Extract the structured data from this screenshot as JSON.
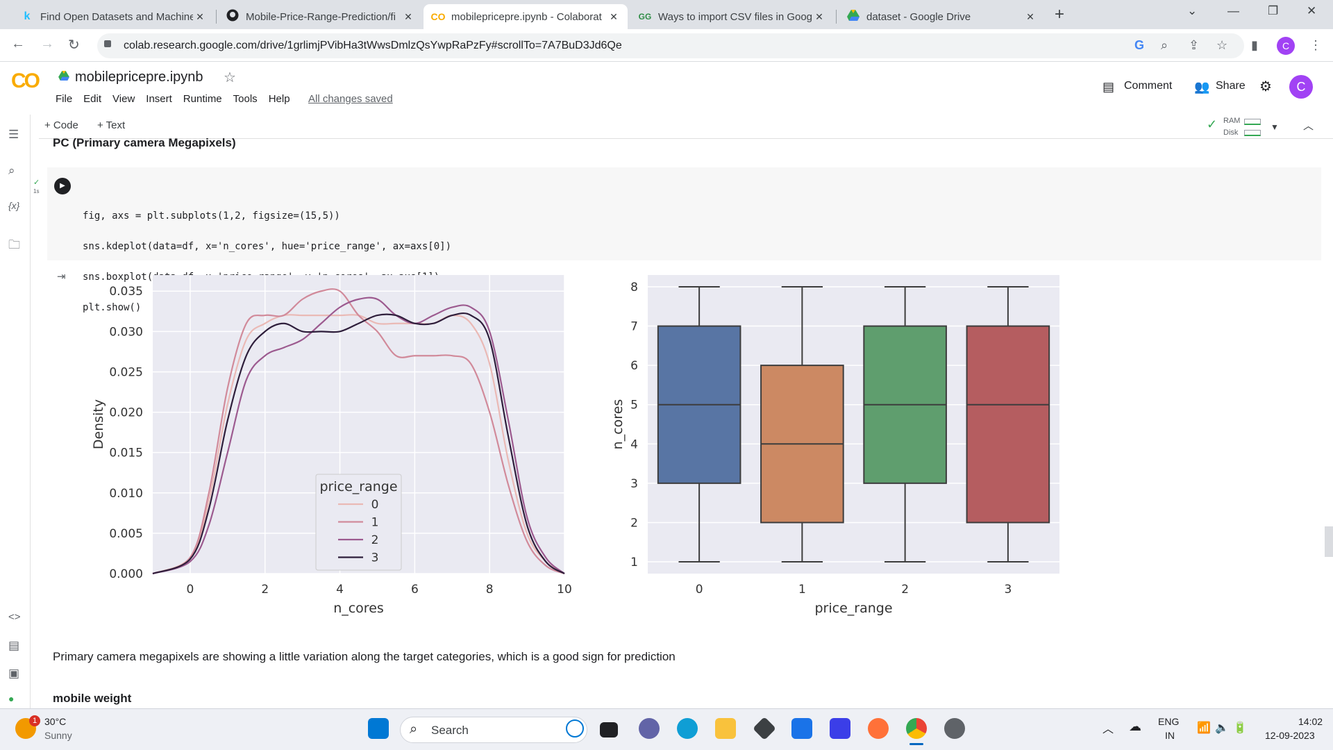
{
  "browser": {
    "tabs": [
      {
        "favicon": "k",
        "title": "Find Open Datasets and Machine",
        "close": "✕"
      },
      {
        "favicon": "github-icon",
        "title": "Mobile-Price-Range-Prediction/fi",
        "close": "✕"
      },
      {
        "favicon": "CO",
        "title": "mobilepricepre.ipynb - Colaborat",
        "close": "✕"
      },
      {
        "favicon": "GG",
        "title": "Ways to import CSV files in Goog",
        "close": "✕"
      },
      {
        "favicon": "drive-icon",
        "title": "dataset - Google Drive",
        "close": "✕"
      }
    ],
    "new_tab": "+",
    "url": "colab.research.google.com/drive/1grlimjPVibHa3tWwsDmlzQsYwpRaPzFy#scrollTo=7A7BuD3Jd6Qe",
    "profile_initial": "C"
  },
  "colab": {
    "logo": "CO",
    "notebook_name": "mobilepricepre.ipynb",
    "menu": [
      "File",
      "Edit",
      "View",
      "Insert",
      "Runtime",
      "Tools",
      "Help"
    ],
    "save_status": "All changes saved",
    "comment_label": "Comment",
    "share_label": "Share",
    "user_initial": "C",
    "add_code": "+ Code",
    "add_text": "+ Text",
    "ram_label": "RAM",
    "disk_label": "Disk"
  },
  "cells": {
    "heading_top": "PC (Primary camera Megapixels)",
    "exec_time": "1s",
    "code_lines": [
      "fig, axs = plt.subplots(1,2, figsize=(15,5))",
      "sns.kdeplot(data=df, x='n_cores', hue='price_range', ax=axs[0])",
      "sns.boxplot(data=df, x='price_range', y='n_cores', ax=axs[1])",
      "plt.show()"
    ],
    "observation": "Primary camera megapixels are showing a little variation along the target categories, which is a good sign for prediction",
    "heading_next": "mobile weight"
  },
  "chart_data": [
    {
      "type": "line",
      "title": "",
      "xlabel": "n_cores",
      "ylabel": "Density",
      "xlim": [
        -1.0,
        10.0
      ],
      "ylim": [
        0.0,
        0.037
      ],
      "xticks": [
        0,
        2,
        4,
        6,
        8,
        10
      ],
      "yticks": [
        "0.000",
        "0.005",
        "0.010",
        "0.015",
        "0.020",
        "0.025",
        "0.030",
        "0.035"
      ],
      "legend": {
        "title": "price_range",
        "placement": "lower-center"
      },
      "x": [
        -1.0,
        0.0,
        0.5,
        1.0,
        1.5,
        2.0,
        2.5,
        3.0,
        3.5,
        4.0,
        4.5,
        5.0,
        5.5,
        6.0,
        6.5,
        7.0,
        7.5,
        8.0,
        8.5,
        9.0,
        9.5,
        10.0
      ],
      "series": [
        {
          "name": "0",
          "color": "#eab9b5",
          "values": [
            0.0,
            0.002,
            0.009,
            0.021,
            0.029,
            0.031,
            0.032,
            0.032,
            0.032,
            0.032,
            0.032,
            0.031,
            0.031,
            0.031,
            0.031,
            0.032,
            0.031,
            0.026,
            0.014,
            0.005,
            0.0015,
            0.0
          ]
        },
        {
          "name": "1",
          "color": "#d18a9a",
          "values": [
            0.0,
            0.002,
            0.01,
            0.023,
            0.031,
            0.032,
            0.032,
            0.034,
            0.035,
            0.035,
            0.032,
            0.03,
            0.027,
            0.027,
            0.027,
            0.027,
            0.026,
            0.02,
            0.011,
            0.004,
            0.001,
            0.0
          ]
        },
        {
          "name": "2",
          "color": "#9c5a8f",
          "values": [
            0.0,
            0.0015,
            0.006,
            0.015,
            0.024,
            0.027,
            0.028,
            0.029,
            0.031,
            0.033,
            0.034,
            0.034,
            0.032,
            0.031,
            0.032,
            0.033,
            0.033,
            0.03,
            0.019,
            0.007,
            0.002,
            0.0
          ]
        },
        {
          "name": "3",
          "color": "#2e1e3b",
          "values": [
            0.0,
            0.0018,
            0.008,
            0.019,
            0.027,
            0.03,
            0.031,
            0.03,
            0.03,
            0.03,
            0.031,
            0.032,
            0.032,
            0.031,
            0.031,
            0.032,
            0.032,
            0.029,
            0.017,
            0.006,
            0.0015,
            0.0
          ]
        }
      ]
    },
    {
      "type": "box",
      "title": "",
      "xlabel": "price_range",
      "ylabel": "n_cores",
      "categories": [
        "0",
        "1",
        "2",
        "3"
      ],
      "ylim": [
        0.7,
        8.3
      ],
      "yticks": [
        1,
        2,
        3,
        4,
        5,
        6,
        7,
        8
      ],
      "boxes": [
        {
          "category": "0",
          "color": "#5875a4",
          "min": 1,
          "q1": 3,
          "median": 5,
          "q3": 7,
          "max": 8
        },
        {
          "category": "1",
          "color": "#cc8963",
          "min": 1,
          "q1": 2,
          "median": 4,
          "q3": 6,
          "max": 8
        },
        {
          "category": "2",
          "color": "#5f9e6e",
          "min": 1,
          "q1": 3,
          "median": 5,
          "q3": 7,
          "max": 8
        },
        {
          "category": "3",
          "color": "#b55d60",
          "min": 1,
          "q1": 2,
          "median": 5,
          "q3": 7,
          "max": 8
        }
      ]
    }
  ],
  "taskbar": {
    "temperature": "30°C",
    "weather": "Sunny",
    "weather_badge": "1",
    "search_label": "Search",
    "language_top": "ENG",
    "language_bottom": "IN",
    "time": "14:02",
    "date": "12-09-2023"
  }
}
